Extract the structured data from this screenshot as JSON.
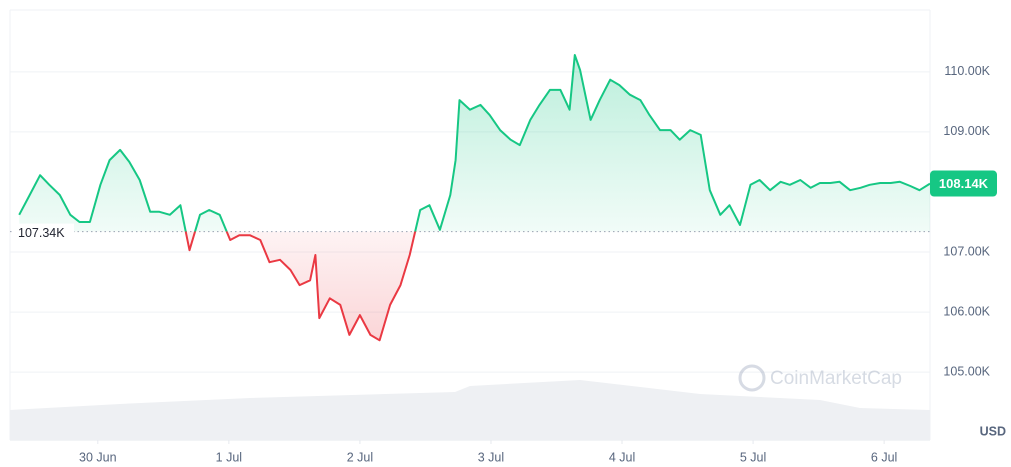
{
  "chart_data": {
    "type": "line",
    "currency": "USD",
    "watermark": "CoinMarketCap",
    "color_up": "#16c784",
    "color_down": "#ea3943",
    "grid": true,
    "baseline": {
      "value": 107340,
      "label": "107.34K"
    },
    "last_price": {
      "value": 108140,
      "label": "108.14K"
    },
    "xlim": [
      0.33,
      7.35
    ],
    "xticks": [
      {
        "value": 1,
        "label": "30 Jun"
      },
      {
        "value": 2,
        "label": "1 Jul"
      },
      {
        "value": 3,
        "label": "2 Jul"
      },
      {
        "value": 4,
        "label": "3 Jul"
      },
      {
        "value": 5,
        "label": "4 Jul"
      },
      {
        "value": 6,
        "label": "5 Jul"
      },
      {
        "value": 7,
        "label": "6 Jul"
      }
    ],
    "ylim": [
      103870,
      111030
    ],
    "yticks": [
      {
        "value": 105000,
        "label": "105.00K"
      },
      {
        "value": 106000,
        "label": "106.00K"
      },
      {
        "value": 107000,
        "label": "107.00K"
      },
      {
        "value": 109000,
        "label": "109.00K"
      },
      {
        "value": 110000,
        "label": "110.00K"
      }
    ],
    "x": [
      0.4,
      0.48,
      0.56,
      0.63,
      0.71,
      0.79,
      0.86,
      0.94,
      1.02,
      1.09,
      1.17,
      1.24,
      1.32,
      1.4,
      1.47,
      1.55,
      1.63,
      1.7,
      1.78,
      1.85,
      1.93,
      2.01,
      2.08,
      2.16,
      2.24,
      2.31,
      2.39,
      2.47,
      2.54,
      2.62,
      2.66,
      2.69,
      2.77,
      2.85,
      2.92,
      3.0,
      3.08,
      3.15,
      3.23,
      3.31,
      3.38,
      3.46,
      3.53,
      3.61,
      3.69,
      3.73,
      3.76,
      3.84,
      3.92,
      3.99,
      4.07,
      4.15,
      4.22,
      4.3,
      4.37,
      4.45,
      4.53,
      4.6,
      4.64,
      4.68,
      4.76,
      4.83,
      4.91,
      4.98,
      5.06,
      5.14,
      5.21,
      5.29,
      5.37,
      5.44,
      5.52,
      5.6,
      5.67,
      5.75,
      5.82,
      5.9,
      5.98,
      6.05,
      6.13,
      6.21,
      6.28,
      6.36,
      6.44,
      6.51,
      6.59,
      6.66,
      6.74,
      6.82,
      6.89,
      6.97,
      7.05,
      7.12,
      7.2,
      7.27,
      7.35
    ],
    "values": [
      107620,
      107950,
      108280,
      108120,
      107950,
      107620,
      107500,
      107500,
      108120,
      108530,
      108700,
      108500,
      108200,
      107670,
      107670,
      107620,
      107780,
      107030,
      107620,
      107700,
      107620,
      107200,
      107280,
      107280,
      107200,
      106830,
      106870,
      106700,
      106450,
      106530,
      106950,
      105900,
      106230,
      106120,
      105620,
      105950,
      105620,
      105530,
      106120,
      106450,
      106950,
      107700,
      107780,
      107370,
      107950,
      108530,
      109530,
      109370,
      109450,
      109280,
      109030,
      108870,
      108780,
      109200,
      109450,
      109700,
      109700,
      109370,
      110280,
      110030,
      109200,
      109530,
      109870,
      109780,
      109620,
      109530,
      109280,
      109030,
      109030,
      108870,
      109030,
      108950,
      108030,
      107620,
      107780,
      107450,
      108120,
      108200,
      108030,
      108170,
      108120,
      108200,
      108070,
      108150,
      108150,
      108170,
      108030,
      108070,
      108120,
      108150,
      108150,
      108170,
      108100,
      108030,
      108140
    ]
  }
}
